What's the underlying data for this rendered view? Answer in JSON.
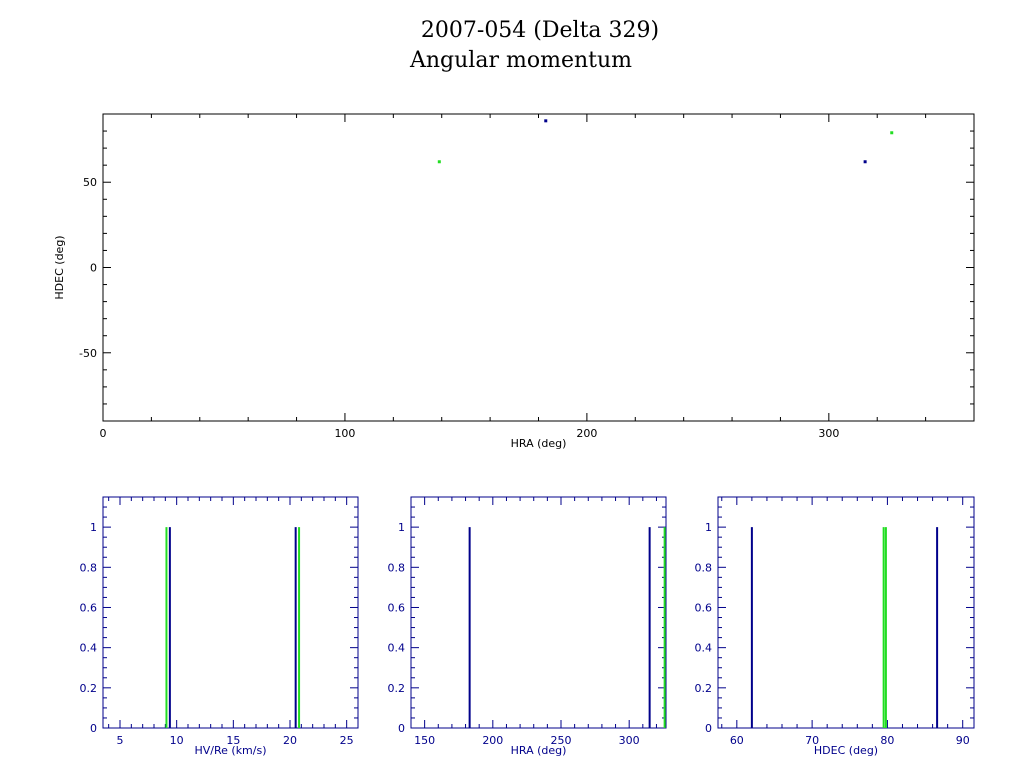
{
  "header": {
    "title_line1": "2007-054 (Delta 329)",
    "title_line2": "Angular momentum"
  },
  "colors": {
    "axis_main": "#000000",
    "axis_hist": "#00008b",
    "blue": "#00008b",
    "green": "#22dd22"
  },
  "chart_data": [
    {
      "type": "scatter",
      "xlabel": "HRA (deg)",
      "ylabel": "HDEC (deg)",
      "xlim": [
        0,
        360
      ],
      "ylim": [
        -90,
        90
      ],
      "xticks": [
        0,
        100,
        200,
        300
      ],
      "yticks": [
        -50,
        0,
        50
      ],
      "series": [
        {
          "color": "blue",
          "points": [
            [
              183,
              86
            ],
            [
              315,
              62
            ]
          ]
        },
        {
          "color": "green",
          "points": [
            [
              139,
              62
            ],
            [
              326,
              79
            ]
          ]
        }
      ]
    },
    {
      "type": "bar",
      "xlabel": "HV/Re (km/s)",
      "xlim": [
        3.5,
        26
      ],
      "ylim": [
        0,
        1.15
      ],
      "xticks": [
        5,
        10,
        15,
        20,
        25
      ],
      "yticks": [
        0,
        0.2,
        0.4,
        0.6,
        0.8,
        1
      ],
      "bars": [
        {
          "x": 9.1,
          "value": 1,
          "color": "green"
        },
        {
          "x": 9.4,
          "value": 1,
          "color": "blue"
        },
        {
          "x": 20.5,
          "value": 1,
          "color": "blue"
        },
        {
          "x": 20.8,
          "value": 1,
          "color": "green"
        }
      ]
    },
    {
      "type": "bar",
      "xlabel": "HRA (deg)",
      "xlim": [
        140,
        327
      ],
      "ylim": [
        0,
        1.15
      ],
      "xticks": [
        150,
        200,
        250,
        300
      ],
      "yticks": [
        0,
        0.2,
        0.4,
        0.6,
        0.8,
        1
      ],
      "bars": [
        {
          "x": 183,
          "value": 1,
          "color": "blue"
        },
        {
          "x": 315,
          "value": 1,
          "color": "blue"
        },
        {
          "x": 326,
          "value": 1,
          "color": "green"
        }
      ]
    },
    {
      "type": "bar",
      "xlabel": "HDEC (deg)",
      "xlim": [
        57.5,
        91.5
      ],
      "ylim": [
        0,
        1.15
      ],
      "xticks": [
        60,
        70,
        80,
        90
      ],
      "yticks": [
        0,
        0.2,
        0.4,
        0.6,
        0.8,
        1
      ],
      "bars": [
        {
          "x": 62,
          "value": 1,
          "color": "blue"
        },
        {
          "x": 79.5,
          "value": 1,
          "color": "green"
        },
        {
          "x": 79.8,
          "value": 1,
          "color": "green"
        },
        {
          "x": 86.6,
          "value": 1,
          "color": "blue"
        }
      ]
    }
  ]
}
